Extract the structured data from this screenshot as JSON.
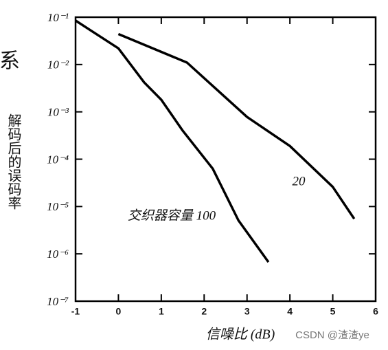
{
  "chart_data": {
    "type": "line",
    "log_y": true,
    "title_fragment": "系",
    "y_label": "解码后的误码率",
    "x_label": "信噪比 (dB)",
    "watermark": "CSDN @渣渣ye",
    "xlim": [
      -1,
      6
    ],
    "xticks": [
      -1,
      0,
      1,
      2,
      3,
      4,
      5,
      6
    ],
    "ylim": [
      1e-07,
      0.1
    ],
    "yticks": [
      {
        "value": 0.1,
        "label": "10⁻¹"
      },
      {
        "value": 0.01,
        "label": "10⁻²"
      },
      {
        "value": 0.001,
        "label": "10⁻³"
      },
      {
        "value": 0.0001,
        "label": "10⁻⁴"
      },
      {
        "value": 1e-05,
        "label": "10⁻⁵"
      },
      {
        "value": 1e-06,
        "label": "10⁻⁶"
      },
      {
        "value": 1e-07,
        "label": "10⁻⁷"
      }
    ],
    "series": [
      {
        "name": "交织器容量 100",
        "color": "#000000",
        "x": [
          -1,
          0,
          0.6,
          1,
          1.5,
          2.2,
          2.8,
          3.5
        ],
        "values": [
          0.085,
          0.022,
          0.0042,
          0.0018,
          0.0004,
          6.3e-05,
          5.1e-06,
          6.7e-07
        ]
      },
      {
        "name": "20",
        "color": "#000000",
        "x": [
          0,
          1.6,
          3,
          4,
          5,
          5.5
        ],
        "values": [
          0.044,
          0.011,
          0.00078,
          0.00019,
          2.6e-05,
          5.5e-06
        ]
      }
    ]
  }
}
